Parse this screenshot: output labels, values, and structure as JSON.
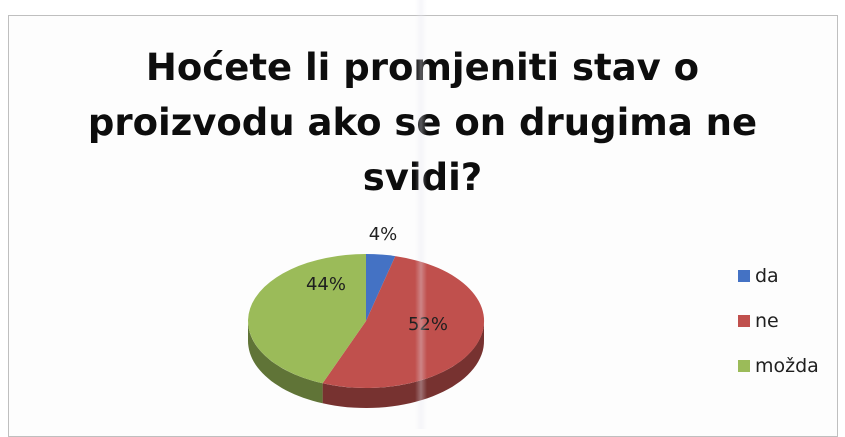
{
  "chart_data": {
    "type": "pie",
    "title_lines": [
      "Hoćete li promjeniti stav o",
      "proizvodu ako se on drugima ne",
      "svidi?"
    ],
    "categories": [
      "da",
      "ne",
      "možda"
    ],
    "values": [
      4,
      52,
      44
    ],
    "labels": [
      "4%",
      "52%",
      "44%"
    ],
    "colors": [
      "#4472c4",
      "#c0504d",
      "#9bbb59"
    ],
    "legend_position": "right"
  }
}
